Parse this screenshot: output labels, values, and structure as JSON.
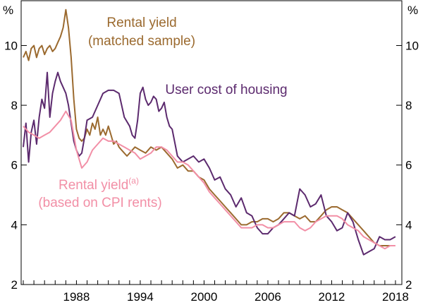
{
  "chart_data": {
    "type": "line",
    "y_unit": "%",
    "xlim": [
      1982.8,
      2018.6
    ],
    "ylim": [
      2,
      11.5
    ],
    "yticks": [
      2,
      4,
      6,
      8,
      10
    ],
    "xticks": [
      1988,
      1994,
      2000,
      2006,
      2012,
      2018
    ],
    "grid": false,
    "legend": "inline annotations",
    "series": [
      {
        "name": "Rental yield (matched sample)",
        "color": "#9b6a2f",
        "x": [
          1983.0,
          1983.25,
          1983.5,
          1983.75,
          1984.0,
          1984.25,
          1984.5,
          1984.75,
          1985.0,
          1985.25,
          1985.5,
          1985.75,
          1986.0,
          1986.25,
          1986.5,
          1986.75,
          1987.0,
          1987.25,
          1987.5,
          1987.75,
          1988.0,
          1988.25,
          1988.5,
          1988.75,
          1989.0,
          1989.25,
          1989.5,
          1989.75,
          1990.0,
          1990.25,
          1990.5,
          1990.75,
          1991.0,
          1991.25,
          1991.5,
          1991.75,
          1992.0,
          1992.25,
          1992.5,
          1992.75,
          1993.0,
          1993.5,
          1994.0,
          1994.5,
          1995.0,
          1995.5,
          1996.0,
          1996.5,
          1997.0,
          1997.5,
          1998.0,
          1998.5,
          1999.0,
          1999.5,
          2000.0,
          2000.5,
          2001.0,
          2001.5,
          2002.0,
          2002.5,
          2003.0,
          2003.5,
          2004.0,
          2004.5,
          2005.0,
          2005.5,
          2006.0,
          2006.5,
          2007.0,
          2007.5,
          2008.0,
          2008.5,
          2009.0,
          2009.5,
          2010.0,
          2010.5,
          2011.0,
          2011.5,
          2012.0,
          2012.5,
          2013.0,
          2013.5,
          2014.0,
          2014.5,
          2015.0,
          2015.5,
          2016.0,
          2016.5,
          2017.0,
          2017.5
        ],
        "values": [
          9.6,
          9.8,
          9.5,
          9.9,
          10.0,
          9.6,
          9.9,
          10.0,
          9.7,
          9.9,
          10.0,
          9.8,
          9.9,
          10.1,
          10.3,
          10.6,
          11.2,
          10.6,
          9.6,
          8.2,
          7.2,
          6.9,
          6.8,
          6.9,
          7.2,
          7.0,
          7.4,
          7.2,
          7.6,
          7.0,
          7.2,
          7.0,
          7.3,
          7.0,
          6.7,
          6.8,
          6.6,
          6.5,
          6.4,
          6.3,
          6.4,
          6.6,
          6.5,
          6.4,
          6.6,
          6.5,
          6.6,
          6.4,
          6.2,
          5.9,
          6.0,
          5.8,
          5.8,
          5.6,
          5.5,
          5.2,
          5.0,
          4.8,
          4.6,
          4.4,
          4.2,
          4.0,
          4.0,
          4.1,
          4.1,
          4.2,
          4.2,
          4.1,
          4.2,
          4.4,
          4.4,
          4.3,
          4.2,
          4.3,
          4.1,
          4.1,
          4.3,
          4.5,
          4.6,
          4.6,
          4.5,
          4.4,
          4.2,
          4.0,
          3.8,
          3.6,
          3.4,
          3.3,
          3.3,
          3.3
        ]
      },
      {
        "name": "User cost of housing",
        "color": "#5c2a6e",
        "x": [
          1983.0,
          1983.25,
          1983.5,
          1983.75,
          1984.0,
          1984.25,
          1984.5,
          1984.75,
          1985.0,
          1985.25,
          1985.5,
          1985.75,
          1986.0,
          1986.25,
          1986.5,
          1986.75,
          1987.0,
          1987.25,
          1987.5,
          1987.75,
          1988.0,
          1988.25,
          1988.5,
          1988.75,
          1989.0,
          1989.5,
          1990.0,
          1990.5,
          1991.0,
          1991.5,
          1992.0,
          1992.5,
          1993.0,
          1993.25,
          1993.5,
          1993.75,
          1994.0,
          1994.25,
          1994.5,
          1994.75,
          1995.0,
          1995.25,
          1995.5,
          1995.75,
          1996.0,
          1996.25,
          1996.5,
          1996.75,
          1997.0,
          1997.5,
          1998.0,
          1998.5,
          1999.0,
          1999.5,
          2000.0,
          2000.5,
          2001.0,
          2001.5,
          2002.0,
          2002.5,
          2003.0,
          2003.5,
          2004.0,
          2004.5,
          2005.0,
          2005.5,
          2006.0,
          2006.5,
          2007.0,
          2007.5,
          2008.0,
          2008.5,
          2009.0,
          2009.5,
          2010.0,
          2010.5,
          2011.0,
          2011.5,
          2012.0,
          2012.5,
          2013.0,
          2013.5,
          2014.0,
          2014.5,
          2015.0,
          2015.5,
          2016.0,
          2016.5,
          2017.0,
          2017.5,
          2018.0
        ],
        "values": [
          6.6,
          7.4,
          6.1,
          7.1,
          7.5,
          6.7,
          7.6,
          8.2,
          7.9,
          9.1,
          7.6,
          8.4,
          8.8,
          9.1,
          8.8,
          8.6,
          8.4,
          8.0,
          7.4,
          6.8,
          6.5,
          6.3,
          6.4,
          6.9,
          7.5,
          7.6,
          8.0,
          8.4,
          8.5,
          8.5,
          8.4,
          7.6,
          7.3,
          7.0,
          6.9,
          7.5,
          8.4,
          8.6,
          8.2,
          8.0,
          8.1,
          8.3,
          8.2,
          7.8,
          7.9,
          8.1,
          7.6,
          7.3,
          7.2,
          6.3,
          6.1,
          6.2,
          6.3,
          6.1,
          6.2,
          5.9,
          5.5,
          5.6,
          5.2,
          5.0,
          4.6,
          4.9,
          4.4,
          4.3,
          3.9,
          3.7,
          3.7,
          3.9,
          4.0,
          4.2,
          4.4,
          4.3,
          5.2,
          5.0,
          4.6,
          4.7,
          5.0,
          4.3,
          4.1,
          3.8,
          3.9,
          4.4,
          4.1,
          3.5,
          3.0,
          3.1,
          3.2,
          3.6,
          3.5,
          3.5,
          3.6
        ]
      },
      {
        "name": "Rental yield (based on CPI rents)",
        "color": "#f28fa6",
        "x": [
          1983.0,
          1983.5,
          1984.0,
          1984.5,
          1985.0,
          1985.5,
          1986.0,
          1986.5,
          1987.0,
          1987.5,
          1988.0,
          1988.5,
          1989.0,
          1989.5,
          1990.0,
          1990.5,
          1991.0,
          1991.5,
          1992.0,
          1992.5,
          1993.0,
          1993.5,
          1994.0,
          1994.5,
          1995.0,
          1995.5,
          1996.0,
          1996.5,
          1997.0,
          1997.5,
          1998.0,
          1998.5,
          1999.0,
          1999.5,
          2000.0,
          2000.5,
          2001.0,
          2001.5,
          2002.0,
          2002.5,
          2003.0,
          2003.5,
          2004.0,
          2004.5,
          2005.0,
          2005.5,
          2006.0,
          2006.5,
          2007.0,
          2007.5,
          2008.0,
          2008.5,
          2009.0,
          2009.5,
          2010.0,
          2010.5,
          2011.0,
          2011.5,
          2012.0,
          2012.5,
          2013.0,
          2013.5,
          2014.0,
          2014.5,
          2015.0,
          2015.5,
          2016.0,
          2016.5,
          2017.0,
          2017.5,
          2018.0
        ],
        "values": [
          7.3,
          7.1,
          7.0,
          6.9,
          7.0,
          7.1,
          7.3,
          7.5,
          7.8,
          7.5,
          6.5,
          5.9,
          6.1,
          6.5,
          6.7,
          6.9,
          6.8,
          6.8,
          6.7,
          6.6,
          6.5,
          6.4,
          6.2,
          6.3,
          6.4,
          6.6,
          6.6,
          6.5,
          6.3,
          6.1,
          6.1,
          6.0,
          5.8,
          5.6,
          5.4,
          5.1,
          4.9,
          4.7,
          4.5,
          4.3,
          4.1,
          3.9,
          3.9,
          3.9,
          4.0,
          4.0,
          3.9,
          3.9,
          4.0,
          4.1,
          4.1,
          4.1,
          3.9,
          3.8,
          3.9,
          4.1,
          4.2,
          4.3,
          4.3,
          4.3,
          4.2,
          4.0,
          3.9,
          3.8,
          3.6,
          3.5,
          3.4,
          3.3,
          3.2,
          3.3,
          3.3
        ]
      }
    ],
    "annotations": {
      "rental_matched_l1": "Rental yield",
      "rental_matched_l2": "(matched sample)",
      "user_cost": "User cost of housing",
      "rental_cpi_l1": "Rental yield",
      "rental_cpi_sup": "(a)",
      "rental_cpi_l2": "(based on CPI rents)"
    }
  }
}
